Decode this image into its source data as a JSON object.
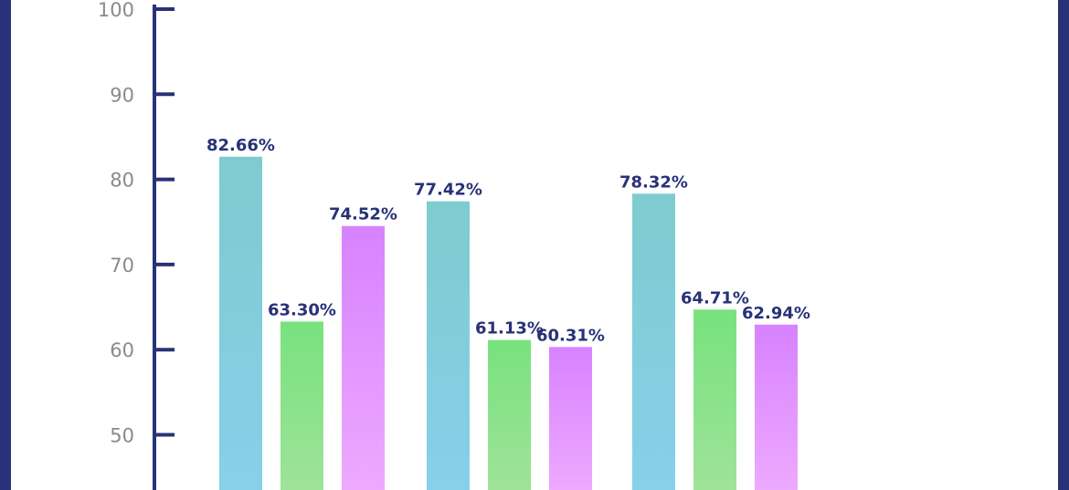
{
  "chart_data": {
    "type": "bar",
    "title": "",
    "xlabel": "",
    "ylabel": "",
    "ylim": [
      45.5,
      100
    ],
    "yticks": [
      50,
      60,
      70,
      80,
      90,
      100
    ],
    "grid": false,
    "legend": "none",
    "categories": [
      "",
      "",
      ""
    ],
    "series": [
      {
        "values": [
          82.66,
          77.42,
          78.32
        ],
        "labels": [
          "82.66%",
          "77.42%",
          "78.32%"
        ]
      },
      {
        "values": [
          63.3,
          61.13,
          64.71
        ],
        "labels": [
          "63.30%",
          "61.13%",
          "64.71%"
        ]
      },
      {
        "values": [
          74.52,
          60.31,
          62.94
        ],
        "labels": [
          "74.52%",
          "60.31%",
          "62.94%"
        ]
      }
    ],
    "colors": {
      "series_top": [
        "#7ecbcf",
        "#78e27e",
        "#d782ff"
      ],
      "series_bottom": [
        "#86d0ea",
        "#9fe39a",
        "#eeaaff"
      ],
      "axis": "#283278",
      "label": "#283278",
      "tick_text": "#8a8a8a",
      "frame": "#283278"
    }
  }
}
